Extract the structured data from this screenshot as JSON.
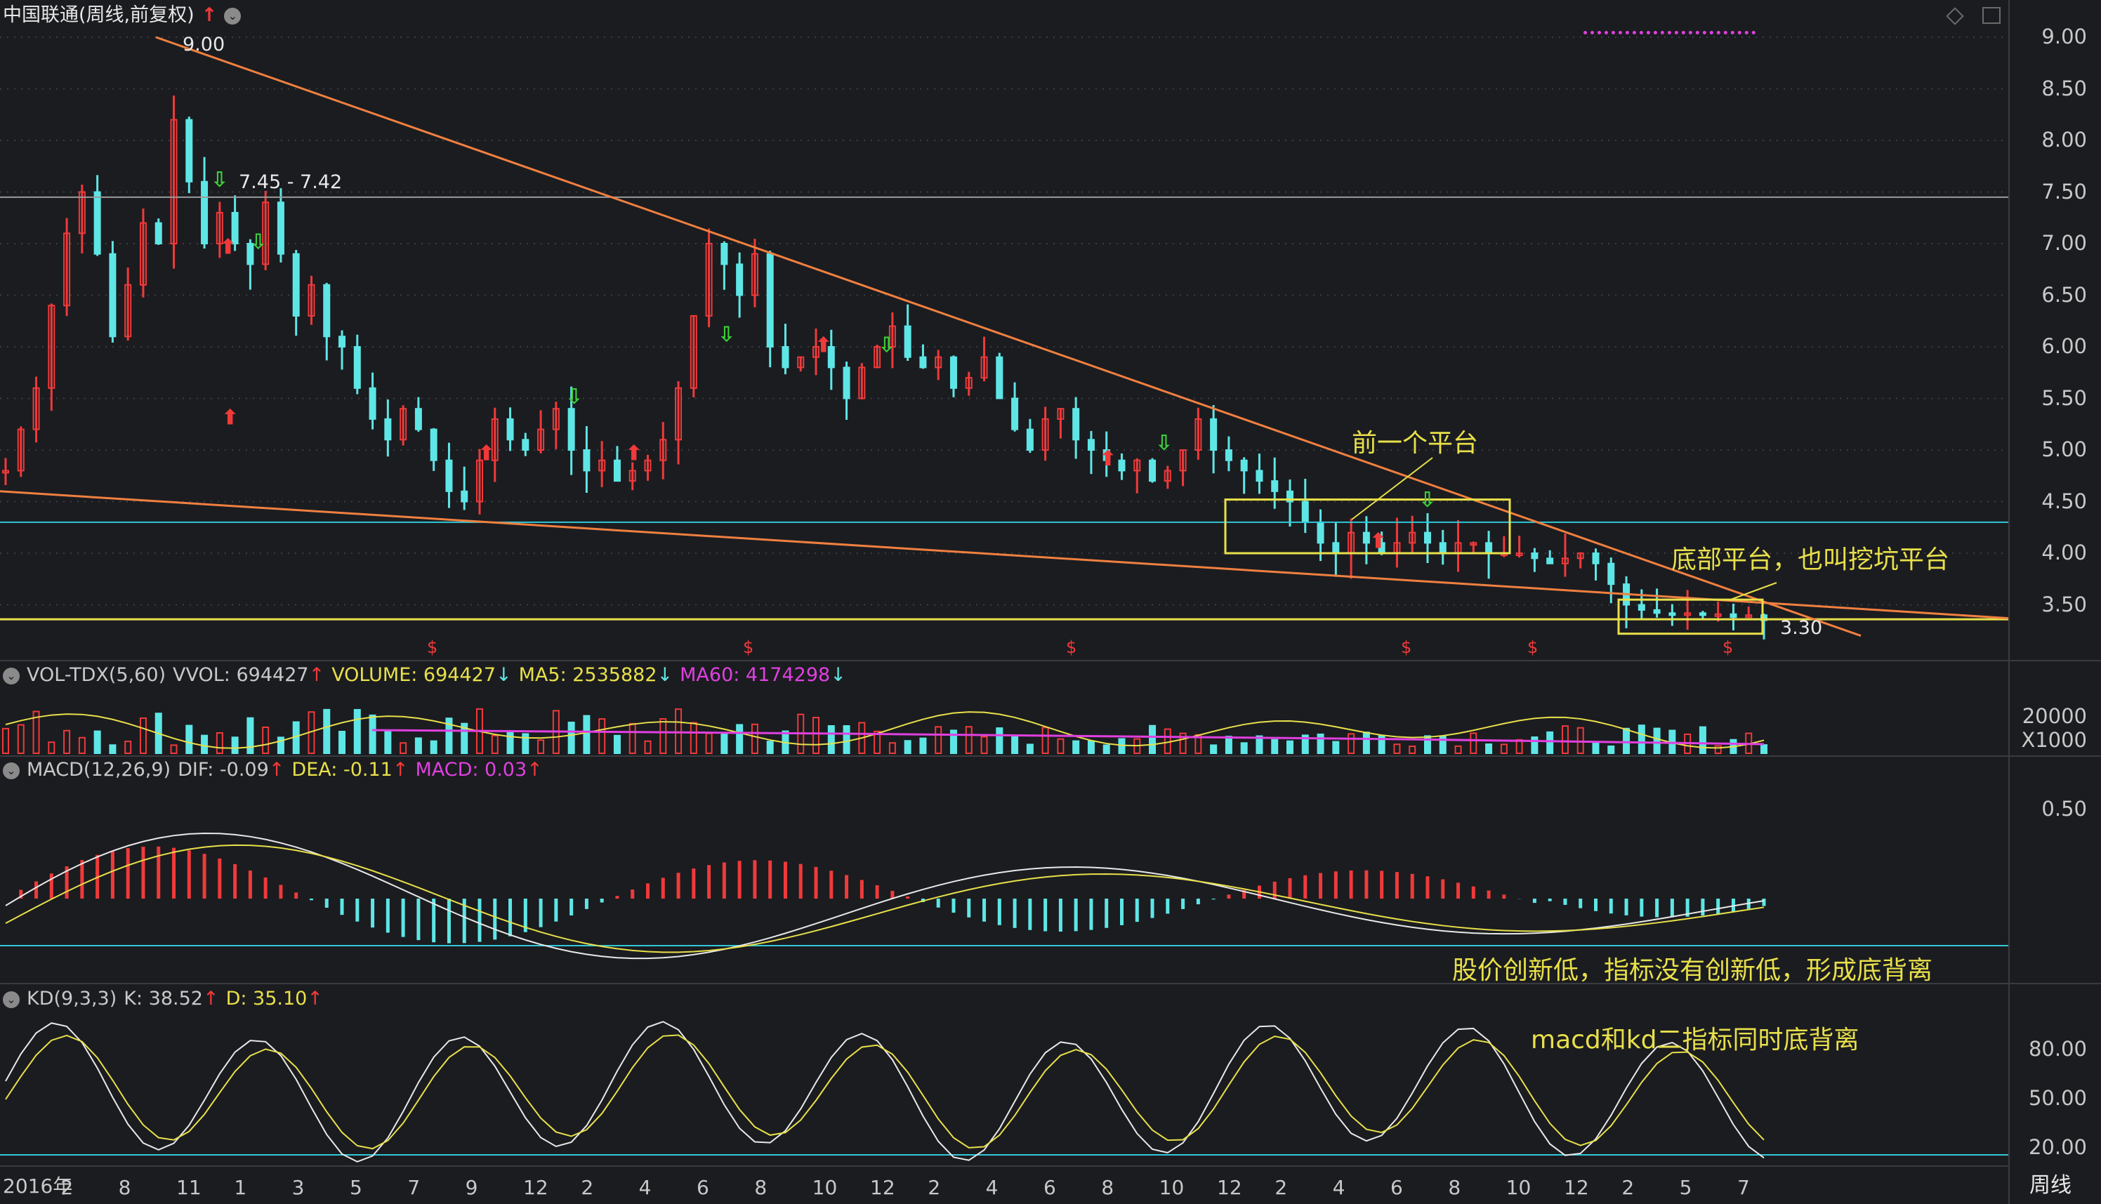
{
  "chart_title": "中国联通(周线,前复权)",
  "price_axis": [
    "9.00",
    "8.50",
    "8.00",
    "7.50",
    "7.00",
    "6.50",
    "6.00",
    "5.50",
    "5.00",
    "4.50",
    "4.00",
    "3.50"
  ],
  "price_high_label": "9.00",
  "price_range_label": "7.45 - 7.42",
  "price_low_label": "3.30",
  "vol": {
    "name": "VOL-TDX(5,60)",
    "vvol": "VVOL: 694427",
    "volume": "VOLUME: 694427",
    "ma5": "MA5: 2535882",
    "ma60": "MA60: 4174298",
    "axis_top": "20000",
    "axis_unit": "X1000"
  },
  "macd": {
    "name": "MACD(12,26,9)",
    "dif": "DIF: -0.09",
    "dea": "DEA: -0.11",
    "macd": "MACD: 0.03",
    "axis": "0.50"
  },
  "kd": {
    "name": "KD(9,3,3)",
    "k": "K: 38.52",
    "d": "D: 35.10",
    "axis": [
      "80.00",
      "50.00",
      "20.00"
    ]
  },
  "annotations": {
    "prev_platform": "前一个平台",
    "bottom_platform": "底部平台，也叫挖坑平台",
    "macd_divergence": "股价创新低，指标没有创新低，形成底背离",
    "kd_divergence": "macd和kd二指标同时底背离"
  },
  "timeline": [
    "2016年",
    "2",
    "8",
    "11",
    "1",
    "3",
    "5",
    "7",
    "9",
    "12",
    "2",
    "4",
    "6",
    "8",
    "10",
    "12",
    "2",
    "4",
    "6",
    "8",
    "10",
    "12",
    "2",
    "4",
    "6",
    "8",
    "10",
    "12",
    "2",
    "5",
    "7"
  ],
  "period_label": "周线",
  "colors": {
    "up": "#f03a3a",
    "down": "#5ee6e6",
    "ma_white": "#e8e8e8",
    "ma_yellow": "#e8e04a",
    "ma_magenta": "#e040e0",
    "trend": "#f08040",
    "cyan_line": "#30c8d8",
    "yellow_line": "#e8e04a"
  },
  "icons": {
    "up_arrow": "up-arrow-icon",
    "collapse": "collapse-circle-icon",
    "diamond": "diamond-icon",
    "panel": "panel-toggle-icon"
  },
  "chart_data": {
    "type": "candlestick",
    "title": "中国联通(周线,前复权)",
    "ylim": [
      3.0,
      9.3
    ],
    "prices": [
      4.8,
      5.2,
      5.6,
      6.4,
      7.1,
      7.5,
      6.9,
      6.1,
      6.6,
      7.2,
      7.0,
      8.2,
      7.6,
      7.0,
      7.3,
      7.0,
      6.8,
      7.4,
      6.9,
      6.3,
      6.6,
      6.1,
      6.0,
      5.6,
      5.3,
      5.1,
      5.4,
      5.2,
      4.9,
      4.6,
      4.5,
      4.9,
      5.3,
      5.1,
      5.0,
      5.2,
      5.4,
      5.0,
      4.8,
      4.9,
      4.7,
      4.8,
      4.9,
      5.1,
      5.6,
      6.3,
      7.0,
      6.8,
      6.5,
      6.9,
      6.0,
      5.8,
      5.9,
      6.0,
      5.8,
      5.5,
      5.8,
      6.0,
      6.2,
      5.9,
      5.8,
      5.9,
      5.6,
      5.7,
      5.9,
      5.5,
      5.2,
      5.0,
      5.3,
      5.4,
      5.1,
      5.0,
      4.9,
      4.8,
      4.9,
      4.7,
      4.8,
      5.0,
      5.3,
      5.0,
      4.9,
      4.8,
      4.7,
      4.6,
      4.5,
      4.3,
      4.1,
      4.0,
      4.2,
      4.1,
      4.0,
      4.1,
      4.2,
      4.1,
      4.0,
      4.1,
      4.1,
      4.0,
      4.0,
      4.0,
      3.95,
      3.9,
      3.95,
      4.0,
      3.9,
      3.7,
      3.5,
      3.45,
      3.42,
      3.4,
      3.42,
      3.4,
      3.41,
      3.38,
      3.4,
      3.35
    ],
    "series": [
      {
        "name": "MA5",
        "values": []
      },
      {
        "name": "MA60",
        "values": []
      }
    ]
  }
}
